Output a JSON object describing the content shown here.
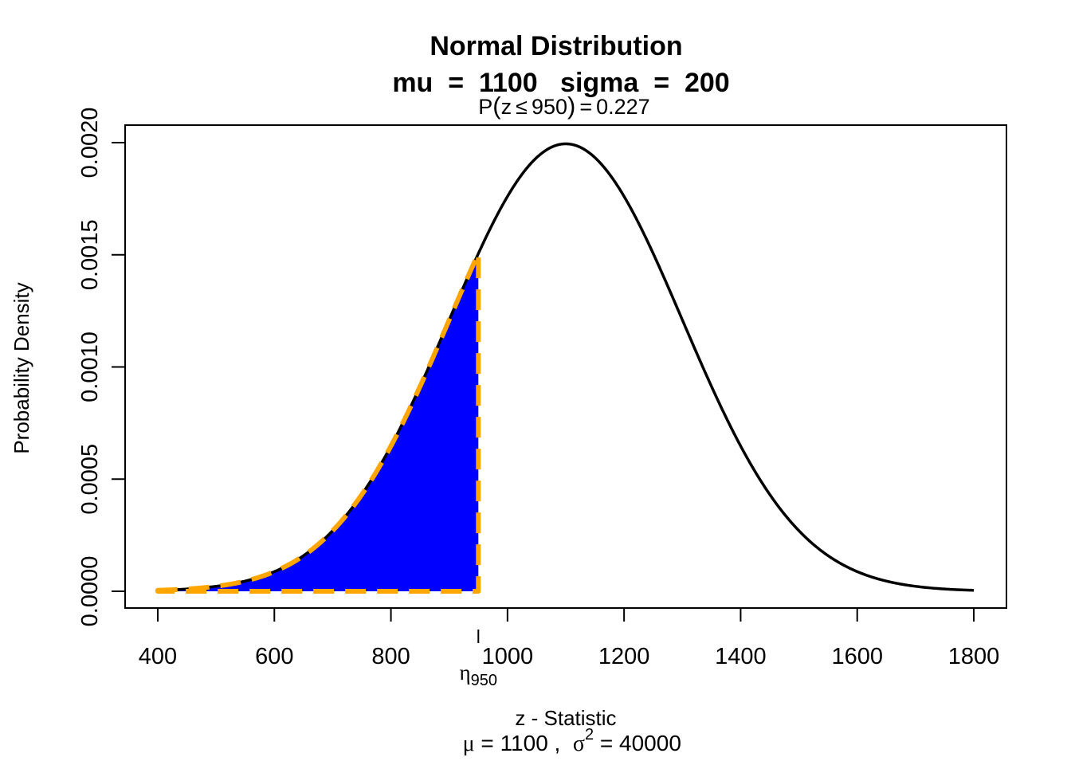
{
  "chart_data": {
    "type": "area",
    "title": "Normal Distribution",
    "title_line2": "mu  =  1100   sigma  =  200",
    "prob_label": {
      "prefix": "P",
      "open": "(",
      "var": "z",
      "op": "≤",
      "value": "950",
      "close": ")",
      "eq": "=",
      "result": "0.227"
    },
    "xlabel": "z - Statistic",
    "sub_xlabel": {
      "mu": "μ",
      "mu_text": " = 1100 ,  ",
      "sigma": "σ",
      "exp": "2",
      "sigma_text": " = 40000"
    },
    "ylabel": "Probability Density",
    "mu": 1100,
    "sigma": 200,
    "xlim": [
      400,
      1800
    ],
    "ylim": [
      0,
      0.002
    ],
    "x_ticks": [
      "400",
      "600",
      "800",
      "1000",
      "1200",
      "1400",
      "1600",
      "1800"
    ],
    "y_ticks": [
      "0.0000",
      "0.0005",
      "0.0010",
      "0.0015",
      "0.0020"
    ],
    "shaded_region": {
      "from": 400,
      "to": 950,
      "probability": 0.227
    },
    "marker": {
      "x": 950,
      "symbol": "η",
      "sub": "950"
    },
    "colors": {
      "curve": "#000000",
      "fill": "#0000ff",
      "outline": "#ffa500",
      "box": "#000000"
    },
    "grid": false,
    "legend": "none"
  }
}
